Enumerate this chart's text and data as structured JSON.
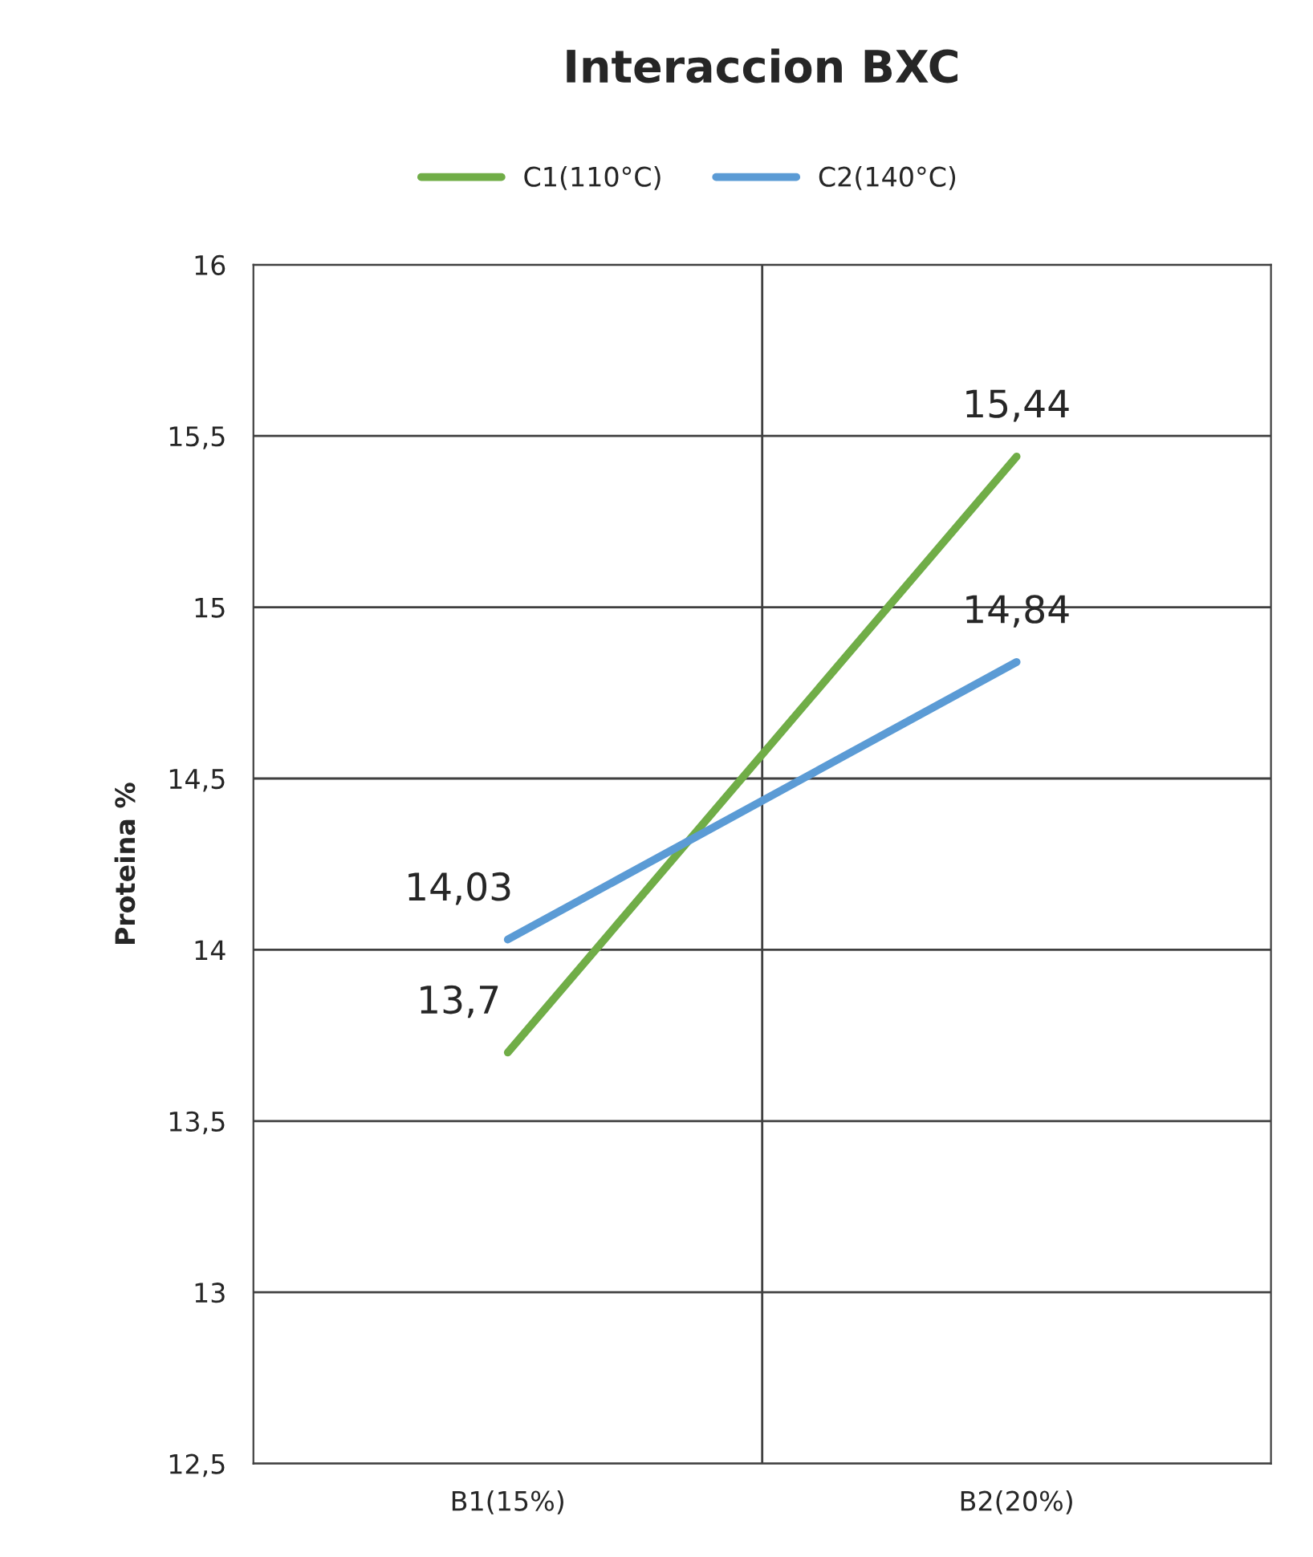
{
  "chart_data": {
    "type": "line",
    "title": "Interaccion BXC",
    "ylabel": "Proteina %",
    "categories": [
      "B1(15%)",
      "B2(20%)"
    ],
    "series": [
      {
        "name": "C1(110°C)",
        "color": "#70ad47",
        "values": [
          13.7,
          15.44
        ],
        "value_labels": [
          "13,7",
          "15,44"
        ]
      },
      {
        "name": "C2(140°C)",
        "color": "#5b9bd5",
        "values": [
          14.03,
          14.84
        ],
        "value_labels": [
          "14,03",
          "14,84"
        ]
      }
    ],
    "ylim": [
      12.5,
      16
    ],
    "yticks": [
      {
        "value": 12.5,
        "label": "12,5"
      },
      13,
      {
        "value": 13.5,
        "label": "13,5"
      },
      14,
      {
        "value": 14.5,
        "label": "14,5"
      },
      15,
      {
        "value": 15.5,
        "label": "15,5"
      },
      16
    ],
    "grid": true,
    "legend": "top",
    "marker": "none",
    "line_style": "solid"
  }
}
